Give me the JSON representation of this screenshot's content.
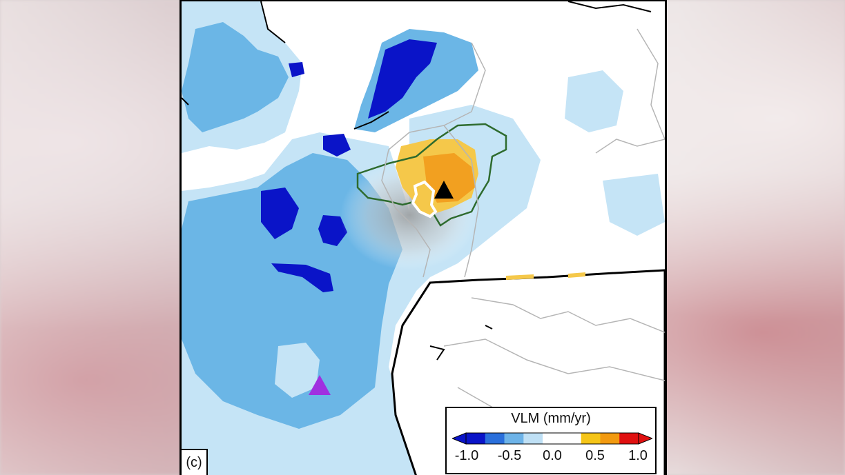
{
  "panel_label": "(c)",
  "legend": {
    "title": "VLM (mm/yr)",
    "ticks": [
      "-1.0",
      "-0.5",
      "0.0",
      "0.5",
      "1.0"
    ],
    "colors": [
      "#0a14c8",
      "#2a6fdb",
      "#6db3e8",
      "#bfe0f5",
      "#ffffff",
      "#ffffff",
      "#f5c518",
      "#f29a10",
      "#e01010"
    ]
  },
  "colors": {
    "land_dark_blue": "#0a14c8",
    "land_mid_blue": "#6bb6e6",
    "land_light_blue": "#c5e4f6",
    "uplift_yellow": "#f5c84a",
    "uplift_orange": "#f2a020",
    "sea": "#ffffff",
    "outline_green": "#2e6b2e",
    "outline_white": "#ffffff",
    "marker_black": "#000000",
    "marker_purple": "#a030e0"
  },
  "markers": [
    {
      "icon": "black-triangle-icon",
      "color": "#000000"
    },
    {
      "icon": "purple-triangle-icon",
      "color": "#a030e0"
    }
  ]
}
